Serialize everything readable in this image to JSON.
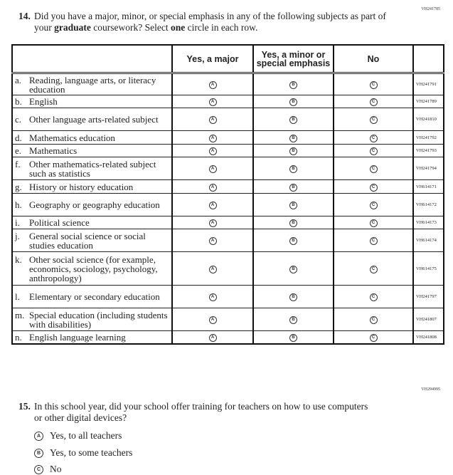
{
  "q14": {
    "id_code": "VH241785",
    "number": "14.",
    "text_before": "Did you have a major, minor, or special emphasis in any of the following subjects as part of your ",
    "bold1": "graduate",
    "text_mid": " coursework? Select ",
    "bold2": "one",
    "text_after": " circle in each row.",
    "columns": [
      "Yes, a major",
      "Yes, a minor or special emphasis",
      "No"
    ],
    "bubble_letters": [
      "A",
      "B",
      "C"
    ],
    "rows": [
      {
        "letter": "a.",
        "label": "Reading, language arts, or literacy education",
        "code": "VH241791"
      },
      {
        "letter": "b.",
        "label": "English",
        "code": "VH241789"
      },
      {
        "letter": "c.",
        "label": "Other language arts-related subject",
        "code": "VH241810"
      },
      {
        "letter": "d.",
        "label": "Mathematics education",
        "code": "VH241792"
      },
      {
        "letter": "e.",
        "label": "Mathematics",
        "code": "VH241793"
      },
      {
        "letter": "f.",
        "label": "Other mathematics-related subject such as statistics",
        "code": "VH241794"
      },
      {
        "letter": "g.",
        "label": "History or history education",
        "code": "VH614171"
      },
      {
        "letter": "h.",
        "label": "Geography or geography education",
        "code": "VH614172"
      },
      {
        "letter": "i.",
        "label": "Political science",
        "code": "VH614173"
      },
      {
        "letter": "j.",
        "label": "General social science or social studies education",
        "code": "VH614174"
      },
      {
        "letter": "k.",
        "label": "Other social science (for example, economics, sociology, psychology, anthropology)",
        "code": "VH614175"
      },
      {
        "letter": "l.",
        "label": "Elementary or secondary education",
        "code": "VH241797"
      },
      {
        "letter": "m.",
        "label": "Special education (including students with disabilities)",
        "code": "VH241807"
      },
      {
        "letter": "n.",
        "label": "English language learning",
        "code": "VH241808"
      }
    ]
  },
  "q15": {
    "id_code": "VH294995",
    "number": "15.",
    "text": "In this school year, did your school offer training for teachers on how to use computers or other digital devices?",
    "options": [
      {
        "letter": "A",
        "label": "Yes, to all teachers"
      },
      {
        "letter": "B",
        "label": "Yes, to some teachers"
      },
      {
        "letter": "C",
        "label": "No"
      }
    ]
  }
}
